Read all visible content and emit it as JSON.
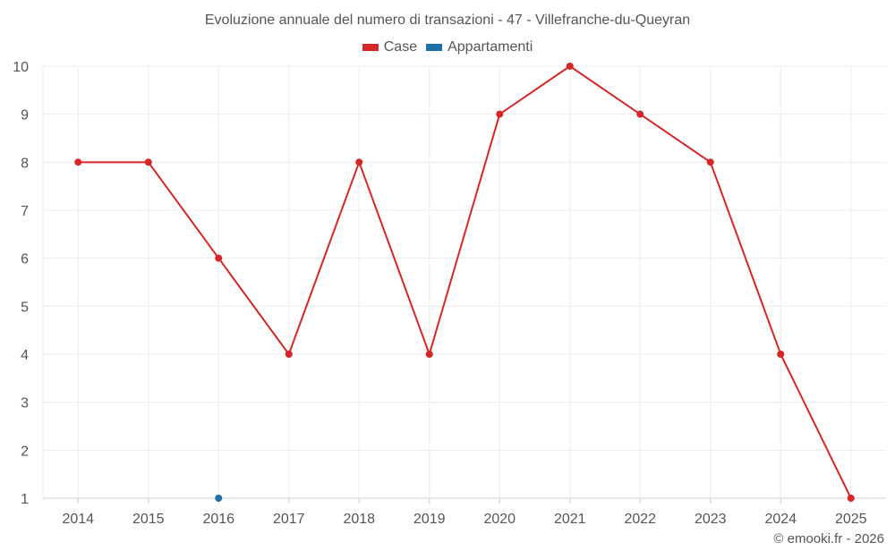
{
  "chart_data": {
    "type": "line",
    "title": "Evoluzione annuale del numero di transazioni - 47 - Villefranche-du-Queyran",
    "categories": [
      "2014",
      "2015",
      "2016",
      "2017",
      "2018",
      "2019",
      "2020",
      "2021",
      "2022",
      "2023",
      "2024",
      "2025"
    ],
    "series": [
      {
        "name": "Case",
        "color": "#d62728",
        "values": [
          8,
          8,
          6,
          4,
          8,
          4,
          9,
          10,
          9,
          8,
          4,
          1
        ]
      },
      {
        "name": "Appartamenti",
        "color": "#1f6fa8",
        "values": [
          null,
          null,
          1,
          null,
          null,
          null,
          null,
          null,
          null,
          null,
          null,
          null
        ]
      }
    ],
    "yticks": [
      1,
      2,
      3,
      4,
      5,
      6,
      7,
      8,
      9,
      10
    ],
    "ylim": [
      1,
      10
    ],
    "xlabel": "",
    "ylabel": "",
    "grid": true,
    "legend_position": "top-center"
  },
  "credit": "© emooki.fr - 2026"
}
